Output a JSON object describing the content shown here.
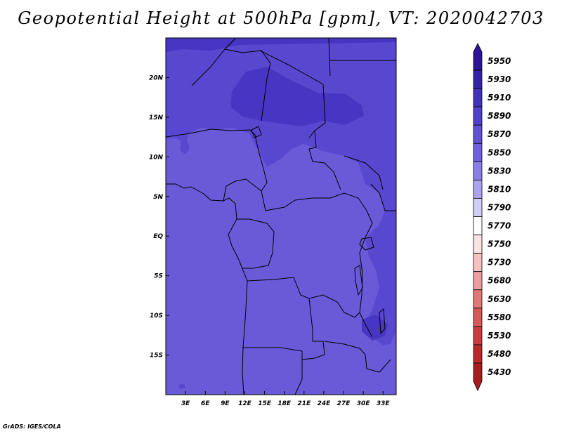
{
  "title": "Geopotential Height at 500hPa [gpm], VT: 2020042703",
  "footer": "GrADS: IGES/COLA",
  "map": {
    "lon_range": [
      0,
      35
    ],
    "lat_range": [
      -20,
      25
    ],
    "x_ticks": [
      {
        "value": 3,
        "label": "3E"
      },
      {
        "value": 6,
        "label": "6E"
      },
      {
        "value": 9,
        "label": "9E"
      },
      {
        "value": 12,
        "label": "12E"
      },
      {
        "value": 15,
        "label": "15E"
      },
      {
        "value": 18,
        "label": "18E"
      },
      {
        "value": 21,
        "label": "21E"
      },
      {
        "value": 24,
        "label": "24E"
      },
      {
        "value": 27,
        "label": "27E"
      },
      {
        "value": 30,
        "label": "30E"
      },
      {
        "value": 33,
        "label": "33E"
      }
    ],
    "y_ticks": [
      {
        "value": 20,
        "label": "20N"
      },
      {
        "value": 15,
        "label": "15N"
      },
      {
        "value": 10,
        "label": "10N"
      },
      {
        "value": 5,
        "label": "5N"
      },
      {
        "value": 0,
        "label": "EQ"
      },
      {
        "value": -5,
        "label": "5S"
      },
      {
        "value": -10,
        "label": "10S"
      },
      {
        "value": -15,
        "label": "15S"
      }
    ],
    "field_colors": {
      "5870": "#6a5ad8",
      "5890": "#5848d0",
      "5910": "#4636c2",
      "5930": "#3a28b0"
    }
  },
  "colorbar": {
    "levels": [
      "5950",
      "5930",
      "5910",
      "5890",
      "5870",
      "5850",
      "5830",
      "5810",
      "5790",
      "5770",
      "5750",
      "5730",
      "5680",
      "5630",
      "5580",
      "5530",
      "5480",
      "5430"
    ],
    "colors": [
      "#2b1496",
      "#3522a8",
      "#4131bb",
      "#5040cb",
      "#6250d5",
      "#7060df",
      "#8a7ee6",
      "#aba3ee",
      "#d2cdf6",
      "#ffffff",
      "#fbe3e3",
      "#f6c1c1",
      "#ee9e9e",
      "#e17777",
      "#d65858",
      "#cb3c3c",
      "#bb2828",
      "#a51d1d"
    ]
  }
}
